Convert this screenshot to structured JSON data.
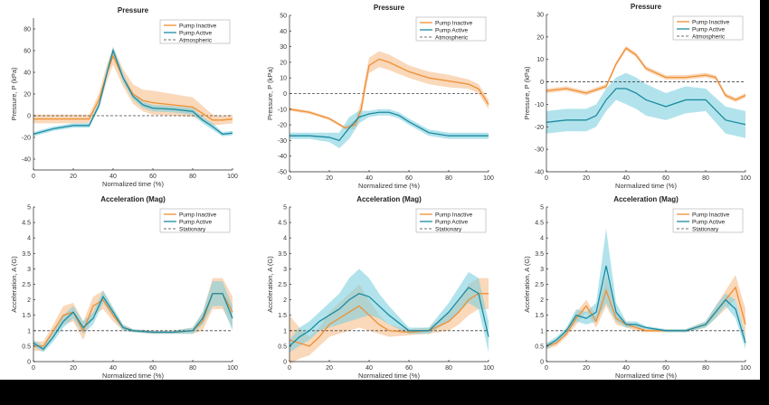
{
  "colors": {
    "inactive": "#EE8F33",
    "inactive_band": "#F6BE8C",
    "active": "#1B8BA0",
    "active_band": "#7FD0E0",
    "reference": "#444444",
    "bottom_bar": "#000000",
    "right_strip": "#000000"
  },
  "chart_data": [
    {
      "type": "line",
      "title": "Pressure",
      "xlabel": "Normalized time (%)",
      "ylabel": "Pressure, P (kPa)",
      "xlim": [
        0,
        100
      ],
      "ylim": [
        -50,
        90
      ],
      "xticks": [
        0,
        20,
        40,
        60,
        80,
        100
      ],
      "yticks": [
        -40,
        -20,
        0,
        20,
        40,
        60,
        80
      ],
      "grid": false,
      "legend_position": "top-right",
      "reference": {
        "name": "Atmospheric",
        "y": 0
      },
      "series": [
        {
          "name": "Pump Inactive",
          "x": [
            0,
            10,
            20,
            28,
            33,
            37,
            40,
            45,
            50,
            55,
            60,
            70,
            80,
            85,
            90,
            95,
            100
          ],
          "y": [
            -3,
            -3,
            -3,
            -3,
            15,
            40,
            55,
            35,
            20,
            14,
            12,
            10,
            8,
            2,
            -4,
            -4,
            -3
          ],
          "band": [
            4,
            4,
            4,
            4,
            6,
            8,
            8,
            8,
            9,
            10,
            11,
            10,
            9,
            7,
            5,
            4,
            4
          ]
        },
        {
          "name": "Pump Active",
          "x": [
            0,
            10,
            20,
            28,
            33,
            37,
            40,
            45,
            50,
            55,
            60,
            70,
            80,
            85,
            90,
            95,
            100
          ],
          "y": [
            -17,
            -12,
            -9,
            -9,
            10,
            40,
            60,
            35,
            18,
            10,
            7,
            6,
            4,
            -4,
            -10,
            -17,
            -16
          ],
          "band": [
            2,
            2,
            2,
            2,
            3,
            4,
            4,
            4,
            3,
            3,
            3,
            3,
            3,
            3,
            3,
            2,
            2
          ]
        }
      ]
    },
    {
      "type": "line",
      "title": "Pressure",
      "xlabel": "Normalized time (%)",
      "ylabel": "Pressure, P (kPa)",
      "xlim": [
        0,
        100
      ],
      "ylim": [
        -50,
        50
      ],
      "xticks": [
        0,
        20,
        40,
        60,
        80,
        100
      ],
      "yticks": [
        -50,
        -40,
        -30,
        -20,
        -10,
        0,
        10,
        20,
        30,
        40,
        50
      ],
      "grid": false,
      "legend_position": "top-right",
      "reference": {
        "name": "Atmospheric",
        "y": 0
      },
      "series": [
        {
          "name": "Pump Inactive",
          "x": [
            0,
            10,
            20,
            28,
            33,
            36,
            38,
            40,
            45,
            50,
            60,
            70,
            80,
            90,
            95,
            100
          ],
          "y": [
            -10,
            -12,
            -16,
            -22,
            -20,
            -10,
            5,
            18,
            22,
            20,
            14,
            10,
            8,
            6,
            3,
            -7
          ],
          "band": [
            1,
            1,
            1,
            1,
            3,
            5,
            5,
            5,
            5,
            5,
            4,
            4,
            4,
            3,
            3,
            3
          ]
        },
        {
          "name": "Pump Active",
          "x": [
            0,
            10,
            20,
            25,
            30,
            35,
            40,
            45,
            50,
            55,
            60,
            70,
            80,
            90,
            100
          ],
          "y": [
            -27,
            -27,
            -28,
            -30,
            -22,
            -15,
            -13,
            -12,
            -12,
            -14,
            -18,
            -25,
            -27,
            -27,
            -27
          ],
          "band": [
            2,
            2,
            3,
            5,
            7,
            4,
            2,
            2,
            2,
            2,
            2,
            2,
            2,
            2,
            2
          ]
        }
      ]
    },
    {
      "type": "line",
      "title": "Pressure",
      "xlabel": "Normalized time (%)",
      "ylabel": "Pressure, P (kPa)",
      "xlim": [
        0,
        100
      ],
      "ylim": [
        -40,
        30
      ],
      "xticks": [
        0,
        20,
        40,
        60,
        80,
        100
      ],
      "yticks": [
        -40,
        -30,
        -20,
        -10,
        0,
        10,
        20,
        30
      ],
      "grid": false,
      "legend_position": "top-right",
      "reference": {
        "name": "Atmospheric",
        "y": 0
      },
      "series": [
        {
          "name": "Pump Inactive",
          "x": [
            0,
            10,
            20,
            30,
            35,
            40,
            45,
            50,
            60,
            70,
            80,
            85,
            90,
            95,
            100
          ],
          "y": [
            -4,
            -3,
            -5,
            -2,
            8,
            15,
            12,
            6,
            2,
            2,
            3,
            2,
            -6,
            -8,
            -6
          ],
          "band": [
            1,
            1,
            1,
            1,
            1,
            1,
            1,
            1,
            1,
            1,
            1,
            1,
            1,
            1,
            1
          ]
        },
        {
          "name": "Pump Active",
          "x": [
            0,
            10,
            20,
            25,
            30,
            35,
            40,
            45,
            50,
            60,
            70,
            80,
            90,
            100
          ],
          "y": [
            -18,
            -17,
            -17,
            -15,
            -8,
            -3,
            -3,
            -5,
            -8,
            -11,
            -8,
            -8,
            -17,
            -19
          ],
          "band": [
            5,
            5,
            5,
            5,
            5,
            5,
            7,
            7,
            7,
            6,
            6,
            5,
            6,
            6
          ]
        }
      ]
    },
    {
      "type": "line",
      "title": "Acceleration (Mag)",
      "xlabel": "Normalized time (%)",
      "ylabel": "Acceleration, A (G)",
      "xlim": [
        0,
        100
      ],
      "ylim": [
        0,
        5
      ],
      "xticks": [
        0,
        20,
        40,
        60,
        80,
        100
      ],
      "yticks": [
        0,
        0.5,
        1,
        1.5,
        2,
        2.5,
        3,
        3.5,
        4,
        4.5,
        5
      ],
      "grid": false,
      "legend_position": "top-right",
      "reference": {
        "name": "Stationary",
        "y": 1
      },
      "series": [
        {
          "name": "Pump Inactive",
          "x": [
            0,
            5,
            10,
            15,
            20,
            25,
            30,
            35,
            40,
            45,
            50,
            60,
            70,
            80,
            85,
            90,
            95,
            100
          ],
          "y": [
            0.5,
            0.5,
            1.0,
            1.5,
            1.6,
            1.0,
            1.8,
            2.0,
            1.5,
            1.1,
            1.0,
            0.95,
            0.95,
            1.0,
            1.3,
            2.2,
            2.2,
            1.6
          ],
          "band": [
            0.15,
            0.15,
            0.2,
            0.3,
            0.3,
            0.3,
            0.3,
            0.3,
            0.2,
            0.1,
            0.05,
            0.05,
            0.05,
            0.1,
            0.3,
            0.5,
            0.5,
            0.5
          ]
        },
        {
          "name": "Pump Active",
          "x": [
            0,
            5,
            10,
            15,
            20,
            25,
            30,
            35,
            40,
            45,
            50,
            60,
            70,
            80,
            85,
            90,
            95,
            100
          ],
          "y": [
            0.6,
            0.4,
            0.8,
            1.3,
            1.6,
            1.1,
            1.4,
            2.1,
            1.6,
            1.1,
            1.0,
            0.95,
            0.95,
            1.0,
            1.4,
            2.2,
            2.2,
            1.4
          ],
          "band": [
            0.1,
            0.1,
            0.15,
            0.2,
            0.2,
            0.2,
            0.2,
            0.2,
            0.15,
            0.1,
            0.05,
            0.05,
            0.05,
            0.1,
            0.2,
            0.4,
            0.4,
            0.4
          ]
        }
      ]
    },
    {
      "type": "line",
      "title": "Acceleration (Mag)",
      "xlabel": "Normalized time (%)",
      "ylabel": "Acceleration, A (G)",
      "xlim": [
        0,
        100
      ],
      "ylim": [
        0,
        5
      ],
      "xticks": [
        0,
        20,
        40,
        60,
        80,
        100
      ],
      "yticks": [
        0,
        0.5,
        1,
        1.5,
        2,
        2.5,
        3,
        3.5,
        4,
        4.5,
        5
      ],
      "grid": false,
      "legend_position": "top-right",
      "reference": {
        "name": "Stationary",
        "y": 1
      },
      "series": [
        {
          "name": "Pump Inactive",
          "x": [
            0,
            5,
            10,
            15,
            20,
            25,
            30,
            35,
            40,
            45,
            50,
            60,
            70,
            80,
            85,
            90,
            95,
            100
          ],
          "y": [
            0.7,
            0.6,
            0.5,
            0.8,
            1.2,
            1.4,
            1.6,
            1.8,
            1.5,
            1.2,
            1.0,
            0.95,
            1.0,
            1.3,
            1.6,
            2.0,
            2.2,
            2.2
          ],
          "band": [
            0.8,
            0.5,
            0.3,
            0.3,
            0.4,
            0.5,
            0.6,
            0.7,
            0.5,
            0.3,
            0.2,
            0.1,
            0.1,
            0.3,
            0.4,
            0.5,
            0.5,
            0.5
          ]
        },
        {
          "name": "Pump Active",
          "x": [
            0,
            5,
            10,
            15,
            20,
            25,
            30,
            35,
            40,
            45,
            50,
            60,
            70,
            80,
            85,
            90,
            95,
            100
          ],
          "y": [
            0.5,
            0.8,
            1.0,
            1.3,
            1.5,
            1.7,
            2.0,
            2.2,
            2.1,
            1.8,
            1.5,
            1.0,
            1.0,
            1.6,
            2.0,
            2.4,
            2.2,
            0.8
          ],
          "band": [
            0.2,
            0.3,
            0.3,
            0.3,
            0.4,
            0.5,
            0.7,
            0.8,
            0.6,
            0.4,
            0.3,
            0.1,
            0.1,
            0.3,
            0.4,
            0.5,
            0.5,
            0.5
          ]
        }
      ]
    },
    {
      "type": "line",
      "title": "Acceleration (Mag)",
      "xlabel": "Normalized time (%)",
      "ylabel": "Acceleration, A (G)",
      "xlim": [
        0,
        100
      ],
      "ylim": [
        0,
        5
      ],
      "xticks": [
        0,
        20,
        40,
        60,
        80,
        100
      ],
      "yticks": [
        0,
        0.5,
        1,
        1.5,
        2,
        2.5,
        3,
        3.5,
        4,
        4.5,
        5
      ],
      "grid": false,
      "legend_position": "top-right",
      "reference": {
        "name": "Stationary",
        "y": 1
      },
      "series": [
        {
          "name": "Pump Inactive",
          "x": [
            0,
            5,
            10,
            15,
            20,
            25,
            30,
            35,
            40,
            45,
            50,
            60,
            70,
            80,
            85,
            90,
            95,
            100
          ],
          "y": [
            0.5,
            0.6,
            0.9,
            1.4,
            1.8,
            1.3,
            2.3,
            1.4,
            1.2,
            1.1,
            1.0,
            1.0,
            1.0,
            1.2,
            1.6,
            2.0,
            2.4,
            1.2
          ],
          "band": [
            0.1,
            0.1,
            0.1,
            0.2,
            0.2,
            0.2,
            0.5,
            0.2,
            0.1,
            0.1,
            0.05,
            0.05,
            0.05,
            0.1,
            0.2,
            0.3,
            0.4,
            0.5
          ]
        },
        {
          "name": "Pump Active",
          "x": [
            0,
            5,
            10,
            15,
            20,
            25,
            30,
            35,
            40,
            45,
            50,
            60,
            70,
            80,
            85,
            90,
            95,
            100
          ],
          "y": [
            0.5,
            0.7,
            1.0,
            1.5,
            1.4,
            1.6,
            3.1,
            1.6,
            1.2,
            1.2,
            1.1,
            1.0,
            1.0,
            1.2,
            1.6,
            2.0,
            1.7,
            0.6
          ],
          "band": [
            0.1,
            0.1,
            0.1,
            0.2,
            0.2,
            0.3,
            1.2,
            0.3,
            0.1,
            0.1,
            0.05,
            0.05,
            0.05,
            0.1,
            0.2,
            0.2,
            0.3,
            0.2
          ]
        }
      ]
    }
  ]
}
